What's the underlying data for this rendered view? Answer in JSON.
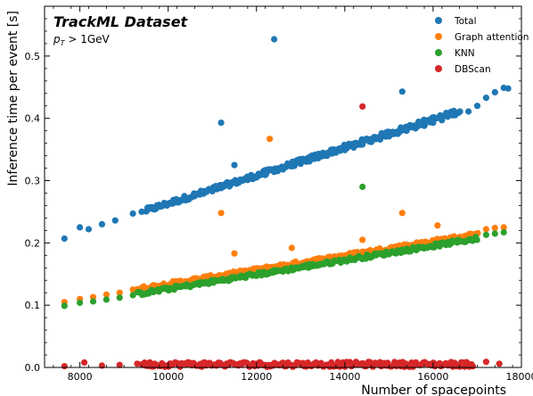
{
  "chart_data": {
    "type": "scatter",
    "title": "TrackML Dataset",
    "subtitle_var": "p",
    "subtitle_sub": "T",
    "subtitle_rest": " > 1GeV",
    "xlabel": "Number of spacepoints",
    "ylabel": "Inference time per event [s]",
    "xlim": [
      7200,
      18000
    ],
    "ylim": [
      0,
      0.58
    ],
    "xticks": [
      8000,
      10000,
      12000,
      14000,
      16000,
      18000
    ],
    "yticks": [
      0.0,
      0.1,
      0.2,
      0.3,
      0.4,
      0.5
    ],
    "xtick_labels": [
      "8000",
      "10000",
      "12000",
      "14000",
      "16000",
      "18000"
    ],
    "ytick_labels": [
      "0.0",
      "0.1",
      "0.2",
      "0.3",
      "0.4",
      "0.5"
    ],
    "grid": false,
    "legend_position": "top-right",
    "series": [
      {
        "name": "Total",
        "color": "#1f77b4",
        "points": [
          [
            7650,
            0.207
          ],
          [
            8000,
            0.225
          ],
          [
            8200,
            0.222
          ],
          [
            8500,
            0.23
          ],
          [
            8800,
            0.236
          ],
          [
            9200,
            0.247
          ],
          [
            9400,
            0.25
          ],
          [
            9600,
            0.255
          ],
          [
            9800,
            0.258
          ],
          [
            10000,
            0.262
          ],
          [
            10200,
            0.267
          ],
          [
            10400,
            0.271
          ],
          [
            10600,
            0.275
          ],
          [
            10800,
            0.279
          ],
          [
            11000,
            0.283
          ],
          [
            11200,
            0.288
          ],
          [
            11400,
            0.292
          ],
          [
            11600,
            0.297
          ],
          [
            11800,
            0.301
          ],
          [
            12000,
            0.305
          ],
          [
            12200,
            0.309
          ],
          [
            12400,
            0.314
          ],
          [
            12600,
            0.318
          ],
          [
            12800,
            0.323
          ],
          [
            13000,
            0.327
          ],
          [
            13200,
            0.331
          ],
          [
            13400,
            0.336
          ],
          [
            13600,
            0.34
          ],
          [
            13800,
            0.345
          ],
          [
            14000,
            0.349
          ],
          [
            14200,
            0.353
          ],
          [
            14400,
            0.358
          ],
          [
            14600,
            0.362
          ],
          [
            14800,
            0.366
          ],
          [
            15000,
            0.371
          ],
          [
            15200,
            0.375
          ],
          [
            15400,
            0.38
          ],
          [
            15600,
            0.384
          ],
          [
            15800,
            0.388
          ],
          [
            16000,
            0.393
          ],
          [
            16200,
            0.397
          ],
          [
            16500,
            0.405
          ],
          [
            16800,
            0.411
          ],
          [
            17000,
            0.42
          ],
          [
            17200,
            0.433
          ],
          [
            17400,
            0.442
          ],
          [
            17600,
            0.449
          ],
          [
            17700,
            0.448
          ],
          [
            11200,
            0.393
          ],
          [
            11500,
            0.325
          ],
          [
            12400,
            0.527
          ],
          [
            15300,
            0.443
          ]
        ],
        "band": {
          "x_start": 9500,
          "x_end": 16600,
          "y_start": 0.252,
          "y_end": 0.412,
          "count": 230,
          "spread": 0.004
        }
      },
      {
        "name": "Graph attention",
        "color": "#ff7f0e",
        "points": [
          [
            7650,
            0.105
          ],
          [
            8000,
            0.11
          ],
          [
            8300,
            0.113
          ],
          [
            8600,
            0.117
          ],
          [
            8900,
            0.12
          ],
          [
            9200,
            0.125
          ],
          [
            17200,
            0.222
          ],
          [
            17400,
            0.224
          ],
          [
            17600,
            0.225
          ],
          [
            11200,
            0.248
          ],
          [
            11500,
            0.183
          ],
          [
            12300,
            0.367
          ],
          [
            12800,
            0.192
          ],
          [
            13500,
            0.175
          ],
          [
            14400,
            0.205
          ],
          [
            15300,
            0.248
          ],
          [
            16100,
            0.228
          ]
        ],
        "band": {
          "x_start": 9300,
          "x_end": 17000,
          "y_start": 0.126,
          "y_end": 0.214,
          "count": 220,
          "spread": 0.003
        }
      },
      {
        "name": "KNN",
        "color": "#2ca02c",
        "points": [
          [
            7650,
            0.099
          ],
          [
            8000,
            0.104
          ],
          [
            8300,
            0.106
          ],
          [
            8600,
            0.109
          ],
          [
            8900,
            0.112
          ],
          [
            9200,
            0.116
          ],
          [
            17200,
            0.213
          ],
          [
            17400,
            0.215
          ],
          [
            17600,
            0.217
          ],
          [
            14400,
            0.29
          ]
        ],
        "band": {
          "x_start": 9300,
          "x_end": 17000,
          "y_start": 0.118,
          "y_end": 0.207,
          "count": 220,
          "spread": 0.003
        }
      },
      {
        "name": "DBScan",
        "color": "#d62728",
        "points": [
          [
            7650,
            0.002
          ],
          [
            8100,
            0.008
          ],
          [
            8500,
            0.003
          ],
          [
            8900,
            0.004
          ],
          [
            9300,
            0.006
          ],
          [
            17200,
            0.009
          ],
          [
            17500,
            0.006
          ],
          [
            14400,
            0.419
          ]
        ],
        "band": {
          "x_start": 9400,
          "x_end": 16900,
          "y_start": 0.005,
          "y_end": 0.005,
          "count": 200,
          "spread": 0.004
        }
      }
    ]
  }
}
